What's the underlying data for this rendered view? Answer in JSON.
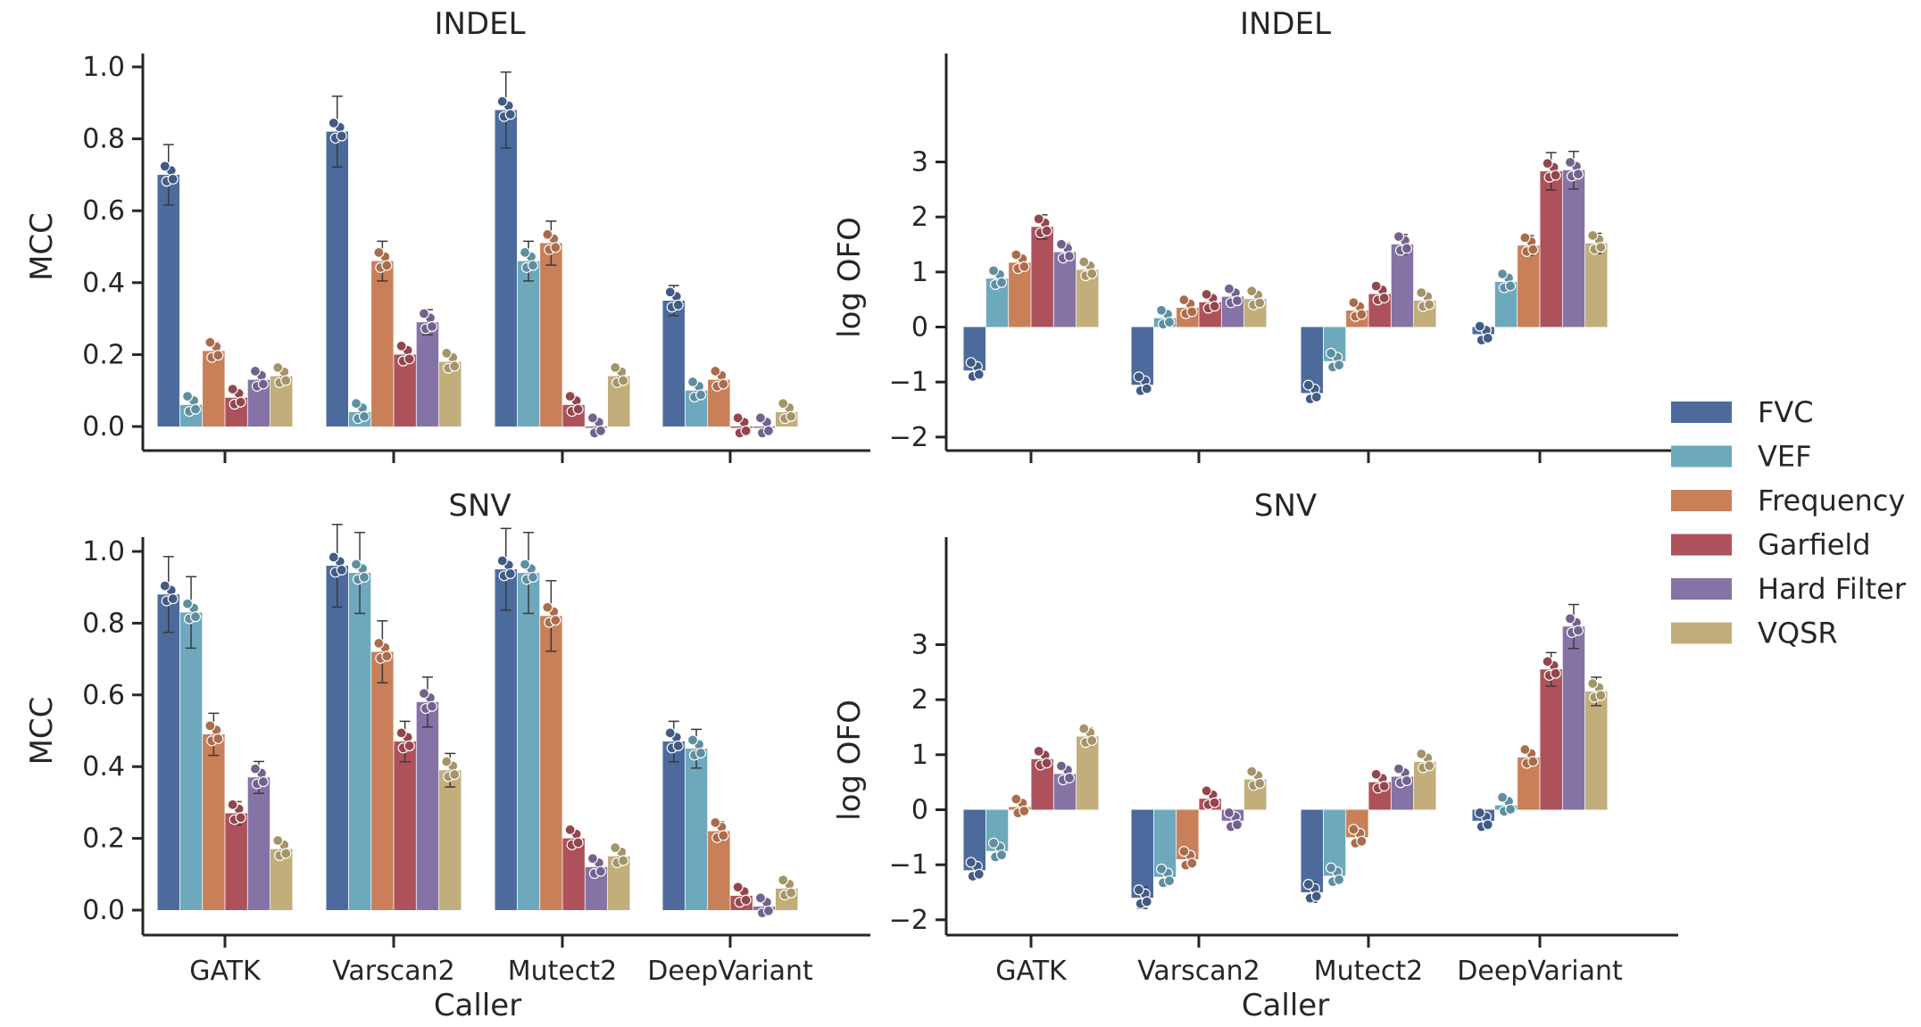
{
  "legend": {
    "entries": [
      {
        "name": "FVC",
        "color": "#4c6b9c"
      },
      {
        "name": "VEF",
        "color": "#6ea8bd"
      },
      {
        "name": "Frequency",
        "color": "#c97f58"
      },
      {
        "name": "Garfield",
        "color": "#ad525a"
      },
      {
        "name": "Hard Filter",
        "color": "#8673a6"
      },
      {
        "name": "VQSR",
        "color": "#c2ae7a"
      }
    ]
  },
  "chart_data": [
    {
      "type": "bar",
      "title": "INDEL",
      "xlabel": "",
      "ylabel": "MCC",
      "ylim": [
        0,
        1.0
      ],
      "yticks": [
        "0.0",
        "0.2",
        "0.4",
        "0.6",
        "0.8",
        "1.0"
      ],
      "categories": [
        "GATK",
        "Varscan2",
        "Mutect2",
        "DeepVariant"
      ],
      "show_tick_labels": false,
      "series": [
        {
          "name": "FVC",
          "values": [
            0.7,
            0.82,
            0.88,
            0.35
          ]
        },
        {
          "name": "VEF",
          "values": [
            0.06,
            0.04,
            0.46,
            0.1
          ]
        },
        {
          "name": "Frequency",
          "values": [
            0.21,
            0.46,
            0.51,
            0.13
          ]
        },
        {
          "name": "Garfield",
          "values": [
            0.08,
            0.2,
            0.06,
            0.0
          ]
        },
        {
          "name": "Hard Filter",
          "values": [
            0.13,
            0.29,
            0.0,
            0.0
          ]
        },
        {
          "name": "VQSR",
          "values": [
            0.14,
            0.18,
            0.14,
            0.04
          ]
        }
      ]
    },
    {
      "type": "bar",
      "title": "INDEL",
      "xlabel": "",
      "ylabel": "log OFO",
      "ylim": [
        -2.1,
        3.9
      ],
      "yticks": [
        "−2",
        "−1",
        "0",
        "1",
        "2",
        "3"
      ],
      "categories": [
        "GATK",
        "Varscan2",
        "Mutect2",
        "DeepVariant"
      ],
      "show_tick_labels": false,
      "series": [
        {
          "name": "FVC",
          "values": [
            -0.79,
            -1.05,
            -1.2,
            -0.13
          ]
        },
        {
          "name": "VEF",
          "values": [
            0.88,
            0.16,
            -0.62,
            0.82
          ]
        },
        {
          "name": "Frequency",
          "values": [
            1.17,
            0.35,
            0.3,
            1.48
          ]
        },
        {
          "name": "Garfield",
          "values": [
            1.82,
            0.45,
            0.6,
            2.83
          ]
        },
        {
          "name": "Hard Filter",
          "values": [
            1.36,
            0.55,
            1.5,
            2.85
          ]
        },
        {
          "name": "VQSR",
          "values": [
            1.04,
            0.51,
            0.48,
            1.52
          ]
        }
      ]
    },
    {
      "type": "bar",
      "title": "SNV",
      "xlabel": "Caller",
      "ylabel": "MCC",
      "ylim": [
        0,
        1.0
      ],
      "yticks": [
        "0.0",
        "0.2",
        "0.4",
        "0.6",
        "0.8",
        "1.0"
      ],
      "categories": [
        "GATK",
        "Varscan2",
        "Mutect2",
        "DeepVariant"
      ],
      "show_tick_labels": true,
      "series": [
        {
          "name": "FVC",
          "values": [
            0.88,
            0.96,
            0.95,
            0.47
          ]
        },
        {
          "name": "VEF",
          "values": [
            0.83,
            0.94,
            0.94,
            0.45
          ]
        },
        {
          "name": "Frequency",
          "values": [
            0.49,
            0.72,
            0.82,
            0.22
          ]
        },
        {
          "name": "Garfield",
          "values": [
            0.27,
            0.47,
            0.2,
            0.04
          ]
        },
        {
          "name": "Hard Filter",
          "values": [
            0.37,
            0.58,
            0.12,
            0.01
          ]
        },
        {
          "name": "VQSR",
          "values": [
            0.17,
            0.39,
            0.15,
            0.06
          ]
        }
      ]
    },
    {
      "type": "bar",
      "title": "SNV",
      "xlabel": "Caller",
      "ylabel": "log OFO",
      "ylim": [
        -2.1,
        3.9
      ],
      "yticks": [
        "−2",
        "−1",
        "0",
        "1",
        "2",
        "3"
      ],
      "categories": [
        "GATK",
        "Varscan2",
        "Mutect2",
        "DeepVariant"
      ],
      "show_tick_labels": true,
      "series": [
        {
          "name": "FVC",
          "values": [
            -1.1,
            -1.6,
            -1.5,
            -0.2
          ]
        },
        {
          "name": "VEF",
          "values": [
            -0.75,
            -1.22,
            -1.2,
            0.08
          ]
        },
        {
          "name": "Frequency",
          "values": [
            0.05,
            -0.9,
            -0.5,
            0.95
          ]
        },
        {
          "name": "Garfield",
          "values": [
            0.92,
            0.2,
            0.5,
            2.55
          ]
        },
        {
          "name": "Hard Filter",
          "values": [
            0.65,
            -0.2,
            0.6,
            3.33
          ]
        },
        {
          "name": "VQSR",
          "values": [
            1.33,
            0.55,
            0.87,
            2.15
          ]
        }
      ]
    }
  ]
}
